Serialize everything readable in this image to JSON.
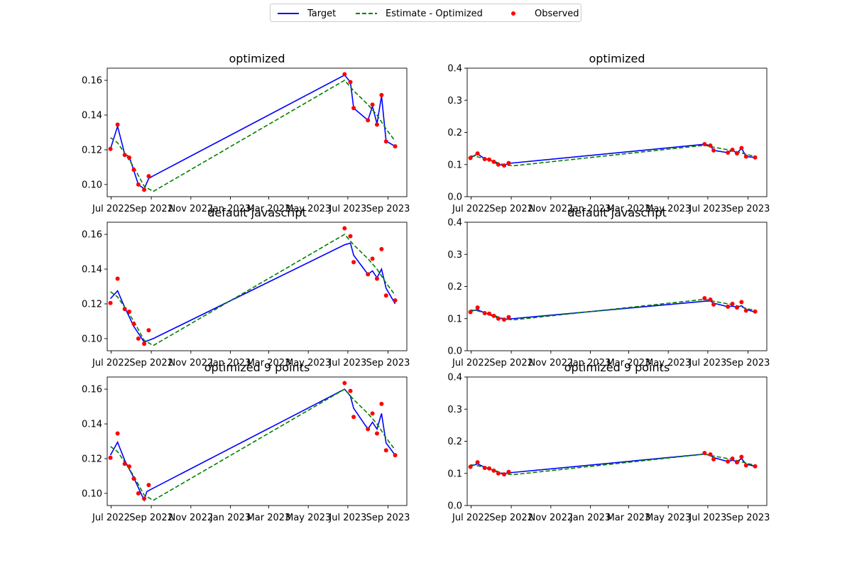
{
  "legend": {
    "target_label": "Target",
    "estimate_label": "Estimate - Optimized",
    "observed_label": "Observed"
  },
  "colors": {
    "target": "#0000ff",
    "estimate": "#008000",
    "observed": "#ff0000"
  },
  "chart_data": [
    {
      "type": "line",
      "title": "optimized",
      "ylim": [
        0.093,
        0.167
      ],
      "yticks": [
        0.1,
        0.12,
        0.14,
        0.16
      ],
      "ytick_decimals": 2,
      "xlim": [
        "2022-06-25",
        "2023-09-30"
      ],
      "xticks": [
        "2022-07-01",
        "2022-09-01",
        "2022-11-01",
        "2023-01-01",
        "2023-03-01",
        "2023-05-01",
        "2023-07-01",
        "2023-09-01"
      ],
      "xtick_labels": [
        "Jul 2022",
        "Sep 2022",
        "Nov 2022",
        "Jan 2023",
        "Mar 2023",
        "May 2023",
        "Jul 2023",
        "Sep 2023"
      ],
      "grid": false,
      "series": [
        {
          "name": "Target",
          "style": "line",
          "x": [
            "2022-06-30",
            "2022-07-11",
            "2022-07-22",
            "2022-07-29",
            "2022-08-05",
            "2022-08-12",
            "2022-08-21",
            "2022-08-28",
            "2022-09-04",
            "2023-06-26",
            "2023-07-05",
            "2023-07-10",
            "2023-08-01",
            "2023-08-08",
            "2023-08-15",
            "2023-08-22",
            "2023-08-29",
            "2023-09-12"
          ],
          "y": [
            0.1205,
            0.1335,
            0.1175,
            0.116,
            0.108,
            0.1,
            0.0975,
            0.1035,
            0.105,
            0.163,
            0.159,
            0.144,
            0.137,
            0.145,
            0.135,
            0.151,
            0.125,
            0.122
          ]
        },
        {
          "name": "Estimate - Optimized",
          "style": "dashed",
          "x": [
            "2022-06-30",
            "2022-07-11",
            "2022-07-22",
            "2022-08-05",
            "2022-08-21",
            "2022-09-04",
            "2023-06-26",
            "2023-07-10",
            "2023-08-01",
            "2023-08-15",
            "2023-08-29",
            "2023-09-12"
          ],
          "y": [
            0.127,
            0.124,
            0.118,
            0.11,
            0.099,
            0.096,
            0.16,
            0.154,
            0.146,
            0.14,
            0.132,
            0.125
          ]
        },
        {
          "name": "Observed",
          "style": "scatter",
          "x": [
            "2022-06-30",
            "2022-07-11",
            "2022-07-22",
            "2022-07-29",
            "2022-08-05",
            "2022-08-12",
            "2022-08-21",
            "2022-08-28",
            "2023-06-26",
            "2023-07-05",
            "2023-07-10",
            "2023-08-01",
            "2023-08-08",
            "2023-08-15",
            "2023-08-22",
            "2023-08-29",
            "2023-09-12"
          ],
          "y": [
            0.1205,
            0.1345,
            0.117,
            0.1155,
            0.1085,
            0.1,
            0.097,
            0.1048,
            0.1635,
            0.159,
            0.144,
            0.137,
            0.146,
            0.1345,
            0.1515,
            0.1248,
            0.122
          ]
        }
      ]
    },
    {
      "type": "line",
      "title": "optimized",
      "ylim": [
        0.0,
        0.4
      ],
      "yticks": [
        0.0,
        0.1,
        0.2,
        0.3,
        0.4
      ],
      "ytick_decimals": 1,
      "xlim": [
        "2022-06-25",
        "2023-09-30"
      ],
      "xticks": [
        "2022-07-01",
        "2022-09-01",
        "2022-11-01",
        "2023-01-01",
        "2023-03-01",
        "2023-05-01",
        "2023-07-01",
        "2023-09-01"
      ],
      "xtick_labels": [
        "Jul 2022",
        "Sep 2022",
        "Nov 2022",
        "Jan 2023",
        "Mar 2023",
        "May 2023",
        "Jul 2023",
        "Sep 2023"
      ],
      "grid": false,
      "series": [
        {
          "name": "Target",
          "style": "line",
          "x": [
            "2022-06-30",
            "2022-07-11",
            "2022-07-22",
            "2022-07-29",
            "2022-08-05",
            "2022-08-12",
            "2022-08-21",
            "2022-08-28",
            "2022-09-04",
            "2023-06-26",
            "2023-07-05",
            "2023-07-10",
            "2023-08-01",
            "2023-08-08",
            "2023-08-15",
            "2023-08-22",
            "2023-08-29",
            "2023-09-12"
          ],
          "y": [
            0.1205,
            0.1335,
            0.1175,
            0.116,
            0.108,
            0.1,
            0.0975,
            0.1035,
            0.105,
            0.163,
            0.159,
            0.144,
            0.137,
            0.145,
            0.135,
            0.151,
            0.125,
            0.122
          ]
        },
        {
          "name": "Estimate - Optimized",
          "style": "dashed",
          "x": [
            "2022-06-30",
            "2022-07-11",
            "2022-07-22",
            "2022-08-05",
            "2022-08-21",
            "2022-09-04",
            "2023-06-26",
            "2023-07-10",
            "2023-08-01",
            "2023-08-15",
            "2023-08-29",
            "2023-09-12"
          ],
          "y": [
            0.127,
            0.124,
            0.118,
            0.11,
            0.099,
            0.096,
            0.16,
            0.154,
            0.146,
            0.14,
            0.132,
            0.125
          ]
        },
        {
          "name": "Observed",
          "style": "scatter",
          "x": [
            "2022-06-30",
            "2022-07-11",
            "2022-07-22",
            "2022-07-29",
            "2022-08-05",
            "2022-08-12",
            "2022-08-21",
            "2022-08-28",
            "2023-06-26",
            "2023-07-05",
            "2023-07-10",
            "2023-08-01",
            "2023-08-08",
            "2023-08-15",
            "2023-08-22",
            "2023-08-29",
            "2023-09-12"
          ],
          "y": [
            0.1205,
            0.1345,
            0.117,
            0.1155,
            0.1085,
            0.1,
            0.097,
            0.1048,
            0.1635,
            0.159,
            0.144,
            0.137,
            0.146,
            0.1345,
            0.1515,
            0.1248,
            0.122
          ]
        }
      ]
    },
    {
      "type": "line",
      "title": "default javascript",
      "ylim": [
        0.093,
        0.167
      ],
      "yticks": [
        0.1,
        0.12,
        0.14,
        0.16
      ],
      "ytick_decimals": 2,
      "xlim": [
        "2022-06-25",
        "2023-09-30"
      ],
      "xticks": [
        "2022-07-01",
        "2022-09-01",
        "2022-11-01",
        "2023-01-01",
        "2023-03-01",
        "2023-05-01",
        "2023-07-01",
        "2023-09-01"
      ],
      "xtick_labels": [
        "Jul 2022",
        "Sep 2022",
        "Nov 2022",
        "Jan 2023",
        "Mar 2023",
        "May 2023",
        "Jul 2023",
        "Sep 2023"
      ],
      "grid": false,
      "series": [
        {
          "name": "Target",
          "style": "line",
          "x": [
            "2022-06-30",
            "2022-07-11",
            "2022-07-22",
            "2022-08-05",
            "2022-08-21",
            "2022-09-04",
            "2023-06-26",
            "2023-07-05",
            "2023-07-10",
            "2023-08-01",
            "2023-08-08",
            "2023-08-15",
            "2023-08-22",
            "2023-08-29",
            "2023-09-12"
          ],
          "y": [
            0.123,
            0.1275,
            0.118,
            0.107,
            0.098,
            0.1,
            0.154,
            0.155,
            0.148,
            0.137,
            0.139,
            0.135,
            0.14,
            0.129,
            0.12
          ]
        },
        {
          "name": "Estimate - Optimized",
          "style": "dashed",
          "x": [
            "2022-06-30",
            "2022-07-11",
            "2022-07-22",
            "2022-08-05",
            "2022-08-21",
            "2022-09-04",
            "2023-06-26",
            "2023-07-10",
            "2023-08-01",
            "2023-08-15",
            "2023-08-29",
            "2023-09-12"
          ],
          "y": [
            0.127,
            0.124,
            0.118,
            0.11,
            0.099,
            0.096,
            0.16,
            0.154,
            0.146,
            0.14,
            0.132,
            0.125
          ]
        },
        {
          "name": "Observed",
          "style": "scatter",
          "x": [
            "2022-06-30",
            "2022-07-11",
            "2022-07-22",
            "2022-07-29",
            "2022-08-05",
            "2022-08-12",
            "2022-08-21",
            "2022-08-28",
            "2023-06-26",
            "2023-07-05",
            "2023-07-10",
            "2023-08-01",
            "2023-08-08",
            "2023-08-15",
            "2023-08-22",
            "2023-08-29",
            "2023-09-12"
          ],
          "y": [
            0.1205,
            0.1345,
            0.117,
            0.1155,
            0.1085,
            0.1,
            0.097,
            0.1048,
            0.1635,
            0.159,
            0.144,
            0.137,
            0.146,
            0.1345,
            0.1515,
            0.1248,
            0.122
          ]
        }
      ]
    },
    {
      "type": "line",
      "title": "default javascript",
      "ylim": [
        0.0,
        0.4
      ],
      "yticks": [
        0.0,
        0.1,
        0.2,
        0.3,
        0.4
      ],
      "ytick_decimals": 1,
      "xlim": [
        "2022-06-25",
        "2023-09-30"
      ],
      "xticks": [
        "2022-07-01",
        "2022-09-01",
        "2022-11-01",
        "2023-01-01",
        "2023-03-01",
        "2023-05-01",
        "2023-07-01",
        "2023-09-01"
      ],
      "xtick_labels": [
        "Jul 2022",
        "Sep 2022",
        "Nov 2022",
        "Jan 2023",
        "Mar 2023",
        "May 2023",
        "Jul 2023",
        "Sep 2023"
      ],
      "grid": false,
      "series": [
        {
          "name": "Target",
          "style": "line",
          "x": [
            "2022-06-30",
            "2022-07-11",
            "2022-07-22",
            "2022-08-05",
            "2022-08-21",
            "2022-09-04",
            "2023-06-26",
            "2023-07-05",
            "2023-07-10",
            "2023-08-01",
            "2023-08-08",
            "2023-08-15",
            "2023-08-22",
            "2023-08-29",
            "2023-09-12"
          ],
          "y": [
            0.123,
            0.1275,
            0.118,
            0.107,
            0.098,
            0.1,
            0.154,
            0.155,
            0.148,
            0.137,
            0.139,
            0.135,
            0.14,
            0.129,
            0.12
          ]
        },
        {
          "name": "Estimate - Optimized",
          "style": "dashed",
          "x": [
            "2022-06-30",
            "2022-07-11",
            "2022-07-22",
            "2022-08-05",
            "2022-08-21",
            "2022-09-04",
            "2023-06-26",
            "2023-07-10",
            "2023-08-01",
            "2023-08-15",
            "2023-08-29",
            "2023-09-12"
          ],
          "y": [
            0.127,
            0.124,
            0.118,
            0.11,
            0.099,
            0.096,
            0.16,
            0.154,
            0.146,
            0.14,
            0.132,
            0.125
          ]
        },
        {
          "name": "Observed",
          "style": "scatter",
          "x": [
            "2022-06-30",
            "2022-07-11",
            "2022-07-22",
            "2022-07-29",
            "2022-08-05",
            "2022-08-12",
            "2022-08-21",
            "2022-08-28",
            "2023-06-26",
            "2023-07-05",
            "2023-07-10",
            "2023-08-01",
            "2023-08-08",
            "2023-08-15",
            "2023-08-22",
            "2023-08-29",
            "2023-09-12"
          ],
          "y": [
            0.1205,
            0.1345,
            0.117,
            0.1155,
            0.1085,
            0.1,
            0.097,
            0.1048,
            0.1635,
            0.159,
            0.144,
            0.137,
            0.146,
            0.1345,
            0.1515,
            0.1248,
            0.122
          ]
        }
      ]
    },
    {
      "type": "line",
      "title": "optimized 9 points",
      "ylim": [
        0.093,
        0.167
      ],
      "yticks": [
        0.1,
        0.12,
        0.14,
        0.16
      ],
      "ytick_decimals": 2,
      "xlim": [
        "2022-06-25",
        "2023-09-30"
      ],
      "xticks": [
        "2022-07-01",
        "2022-09-01",
        "2022-11-01",
        "2023-01-01",
        "2023-03-01",
        "2023-05-01",
        "2023-07-01",
        "2023-09-01"
      ],
      "xtick_labels": [
        "Jul 2022",
        "Sep 2022",
        "Nov 2022",
        "Jan 2023",
        "Mar 2023",
        "May 2023",
        "Jul 2023",
        "Sep 2023"
      ],
      "grid": false,
      "series": [
        {
          "name": "Target",
          "style": "line",
          "x": [
            "2022-06-30",
            "2022-07-11",
            "2022-07-22",
            "2022-08-05",
            "2022-08-21",
            "2022-08-25",
            "2022-09-04",
            "2023-06-26",
            "2023-07-05",
            "2023-07-10",
            "2023-08-01",
            "2023-08-08",
            "2023-08-15",
            "2023-08-22",
            "2023-08-29",
            "2023-09-12"
          ],
          "y": [
            0.122,
            0.1295,
            0.119,
            0.109,
            0.096,
            0.101,
            0.103,
            0.16,
            0.156,
            0.149,
            0.137,
            0.141,
            0.137,
            0.146,
            0.129,
            0.122
          ]
        },
        {
          "name": "Estimate - Optimized",
          "style": "dashed",
          "x": [
            "2022-06-30",
            "2022-07-11",
            "2022-07-22",
            "2022-08-05",
            "2022-08-21",
            "2022-09-04",
            "2023-06-26",
            "2023-07-10",
            "2023-08-01",
            "2023-08-15",
            "2023-08-29",
            "2023-09-12"
          ],
          "y": [
            0.127,
            0.124,
            0.118,
            0.11,
            0.099,
            0.096,
            0.16,
            0.154,
            0.146,
            0.14,
            0.132,
            0.125
          ]
        },
        {
          "name": "Observed",
          "style": "scatter",
          "x": [
            "2022-06-30",
            "2022-07-11",
            "2022-07-22",
            "2022-07-29",
            "2022-08-05",
            "2022-08-12",
            "2022-08-21",
            "2022-08-28",
            "2023-06-26",
            "2023-07-05",
            "2023-07-10",
            "2023-08-01",
            "2023-08-08",
            "2023-08-15",
            "2023-08-22",
            "2023-08-29",
            "2023-09-12"
          ],
          "y": [
            0.1205,
            0.1345,
            0.117,
            0.1155,
            0.1085,
            0.1,
            0.097,
            0.1048,
            0.1635,
            0.159,
            0.144,
            0.137,
            0.146,
            0.1345,
            0.1515,
            0.1248,
            0.122
          ]
        }
      ]
    },
    {
      "type": "line",
      "title": "optimized 9 points",
      "ylim": [
        0.0,
        0.4
      ],
      "yticks": [
        0.0,
        0.1,
        0.2,
        0.3,
        0.4
      ],
      "ytick_decimals": 1,
      "xlim": [
        "2022-06-25",
        "2023-09-30"
      ],
      "xticks": [
        "2022-07-01",
        "2022-09-01",
        "2022-11-01",
        "2023-01-01",
        "2023-03-01",
        "2023-05-01",
        "2023-07-01",
        "2023-09-01"
      ],
      "xtick_labels": [
        "Jul 2022",
        "Sep 2022",
        "Nov 2022",
        "Jan 2023",
        "Mar 2023",
        "May 2023",
        "Jul 2023",
        "Sep 2023"
      ],
      "grid": false,
      "series": [
        {
          "name": "Target",
          "style": "line",
          "x": [
            "2022-06-30",
            "2022-07-11",
            "2022-07-22",
            "2022-08-05",
            "2022-08-21",
            "2022-08-25",
            "2022-09-04",
            "2023-06-26",
            "2023-07-05",
            "2023-07-10",
            "2023-08-01",
            "2023-08-08",
            "2023-08-15",
            "2023-08-22",
            "2023-08-29",
            "2023-09-12"
          ],
          "y": [
            0.122,
            0.1295,
            0.119,
            0.109,
            0.096,
            0.101,
            0.103,
            0.16,
            0.156,
            0.149,
            0.137,
            0.141,
            0.137,
            0.146,
            0.129,
            0.122
          ]
        },
        {
          "name": "Estimate - Optimized",
          "style": "dashed",
          "x": [
            "2022-06-30",
            "2022-07-11",
            "2022-07-22",
            "2022-08-05",
            "2022-08-21",
            "2022-09-04",
            "2023-06-26",
            "2023-07-10",
            "2023-08-01",
            "2023-08-15",
            "2023-08-29",
            "2023-09-12"
          ],
          "y": [
            0.127,
            0.124,
            0.118,
            0.11,
            0.099,
            0.096,
            0.16,
            0.154,
            0.146,
            0.14,
            0.132,
            0.125
          ]
        },
        {
          "name": "Observed",
          "style": "scatter",
          "x": [
            "2022-06-30",
            "2022-07-11",
            "2022-07-22",
            "2022-07-29",
            "2022-08-05",
            "2022-08-12",
            "2022-08-21",
            "2022-08-28",
            "2023-06-26",
            "2023-07-05",
            "2023-07-10",
            "2023-08-01",
            "2023-08-08",
            "2023-08-15",
            "2023-08-22",
            "2023-08-29",
            "2023-09-12"
          ],
          "y": [
            0.1205,
            0.1345,
            0.117,
            0.1155,
            0.1085,
            0.1,
            0.097,
            0.1048,
            0.1635,
            0.159,
            0.144,
            0.137,
            0.146,
            0.1345,
            0.1515,
            0.1248,
            0.122
          ]
        }
      ]
    }
  ]
}
